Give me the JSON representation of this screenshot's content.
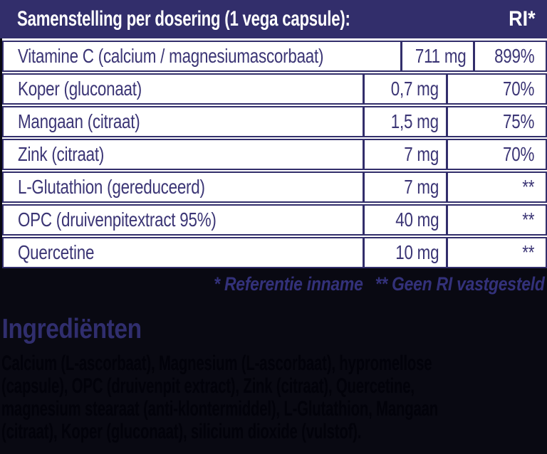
{
  "table": {
    "header": {
      "title": "Samenstelling per dosering (1 vega capsule):",
      "ri_label": "RI*"
    },
    "rows": [
      {
        "label": "Vitamine C (calcium / magnesiumascorbaat)",
        "amount": "711 mg",
        "ri": "899%"
      },
      {
        "label": "Koper (gluconaat)",
        "amount": "0,7 mg",
        "ri": "70%"
      },
      {
        "label": "Mangaan (citraat)",
        "amount": "1,5 mg",
        "ri": "75%"
      },
      {
        "label": "Zink (citraat)",
        "amount": "7 mg",
        "ri": "70%"
      },
      {
        "label": "L-Glutathion (gereduceerd)",
        "amount": "7 mg",
        "ri": "**"
      },
      {
        "label": "OPC (druivenpitextract 95%)",
        "amount": "40 mg",
        "ri": "**"
      },
      {
        "label": "Quercetine",
        "amount": "10 mg",
        "ri": "**"
      }
    ]
  },
  "footnotes": {
    "reference": "* Referentie inname",
    "no_ri": "** Geen RI vastgesteld"
  },
  "ingredients": {
    "heading": "Ingrediënten",
    "lines": [
      "Calcium (L-ascorbaat), Magnesium (L-ascorbaat), hypromellose",
      "(capsule), OPC (druivenpit extract), Zink (citraat), Quercetine,",
      "magnesium stearaat (anti-klontermiddel), L-Glutathion, Mangaan",
      "(citraat), Koper (gluconaat), silicium dioxide (vulstof)."
    ]
  },
  "colors": {
    "header_bg": "#322E6B",
    "header_text": "#FFFFFF",
    "border_navy": "#322E6B",
    "row_text": "#3B3575",
    "cell_bg": "#FFFFFF",
    "page_bg": "#090912",
    "footnote_text": "#33317A",
    "heading_text": "#302E6E",
    "ingredients_text": "#02020A"
  }
}
